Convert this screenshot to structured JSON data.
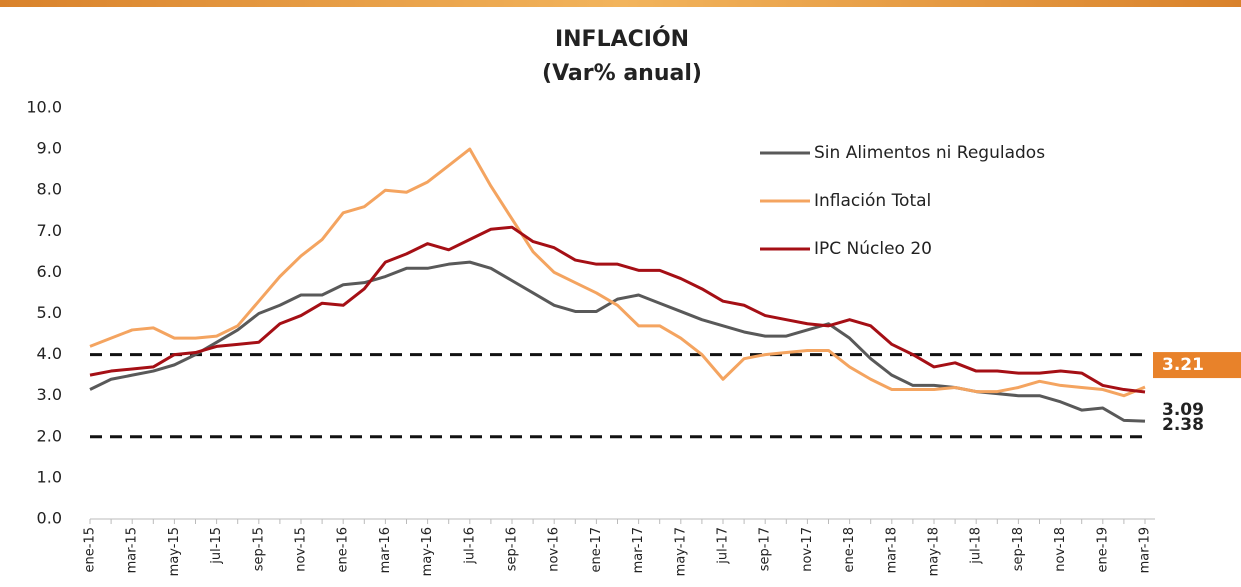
{
  "chart_data": {
    "type": "line",
    "title": "INFLACIÓN",
    "subtitle": "(Var% anual)",
    "categories": [
      "ene-15",
      null,
      "mar-15",
      null,
      "may-15",
      null,
      "jul-15",
      null,
      "sep-15",
      null,
      "nov-15",
      null,
      "ene-16",
      null,
      "mar-16",
      null,
      "may-16",
      null,
      "jul-16",
      null,
      "sep-16",
      null,
      "nov-16",
      null,
      "ene-17",
      null,
      "mar-17",
      null,
      "may-17",
      null,
      "jul-17",
      null,
      "sep-17",
      null,
      "nov-17",
      null,
      "ene-18",
      null,
      "mar-18",
      null,
      "may-18",
      null,
      "jul-18",
      null,
      "sep-18",
      null,
      "nov-18",
      null,
      "ene-19",
      null,
      "mar-19"
    ],
    "series": [
      {
        "name": "Sin Alimentos ni Regulados",
        "color": "#595959",
        "values": [
          3.15,
          3.4,
          3.5,
          3.6,
          3.75,
          4.0,
          4.3,
          4.6,
          5.0,
          5.2,
          5.45,
          5.45,
          5.7,
          5.75,
          5.9,
          6.1,
          6.1,
          6.2,
          6.25,
          6.1,
          5.8,
          5.5,
          5.2,
          5.05,
          5.05,
          5.35,
          5.45,
          5.25,
          5.05,
          4.85,
          4.7,
          4.55,
          4.45,
          4.45,
          4.6,
          4.75,
          4.4,
          3.9,
          3.5,
          3.25,
          3.25,
          3.2,
          3.1,
          3.05,
          3.0,
          3.0,
          2.85,
          2.65,
          2.7,
          2.4,
          2.38
        ]
      },
      {
        "name": "Inflación Total",
        "color": "#f4a460",
        "values": [
          4.2,
          4.4,
          4.6,
          4.65,
          4.4,
          4.4,
          4.45,
          4.7,
          5.3,
          5.9,
          6.4,
          6.8,
          7.45,
          7.6,
          8.0,
          7.95,
          8.2,
          8.6,
          9.0,
          8.1,
          7.3,
          6.5,
          6.0,
          5.75,
          5.5,
          5.2,
          4.7,
          4.7,
          4.4,
          4.0,
          3.4,
          3.9,
          4.0,
          4.05,
          4.1,
          4.1,
          3.7,
          3.4,
          3.15,
          3.15,
          3.15,
          3.2,
          3.1,
          3.1,
          3.2,
          3.35,
          3.25,
          3.2,
          3.15,
          3.0,
          3.21
        ]
      },
      {
        "name": "IPC Núcleo 20",
        "color": "#a50f15",
        "values": [
          3.5,
          3.6,
          3.65,
          3.7,
          4.0,
          4.05,
          4.2,
          4.25,
          4.3,
          4.75,
          4.95,
          5.25,
          5.2,
          5.6,
          6.25,
          6.45,
          6.7,
          6.55,
          6.8,
          7.05,
          7.1,
          6.75,
          6.6,
          6.3,
          6.2,
          6.2,
          6.05,
          6.05,
          5.85,
          5.6,
          5.3,
          5.2,
          4.95,
          4.85,
          4.75,
          4.7,
          4.85,
          4.7,
          4.25,
          4.0,
          3.7,
          3.8,
          3.6,
          3.6,
          3.55,
          3.55,
          3.6,
          3.55,
          3.25,
          3.15,
          3.09
        ]
      }
    ],
    "ylim": [
      0,
      10
    ],
    "yticks": [
      {
        "value": 0,
        "label": "0.0"
      },
      {
        "value": 1,
        "label": "1.0"
      },
      {
        "value": 2,
        "label": "2.0"
      },
      {
        "value": 3,
        "label": "3.0"
      },
      {
        "value": 4,
        "label": "4.0"
      },
      {
        "value": 5,
        "label": "5.0"
      },
      {
        "value": 6,
        "label": "6.0"
      },
      {
        "value": 7,
        "label": "7.0"
      },
      {
        "value": 8,
        "label": "8.0"
      },
      {
        "value": 9,
        "label": "9.0"
      },
      {
        "value": 10,
        "label": "10.0"
      }
    ],
    "reference_lines": [
      4,
      2
    ],
    "legend": "upper right",
    "grid": false
  }
}
